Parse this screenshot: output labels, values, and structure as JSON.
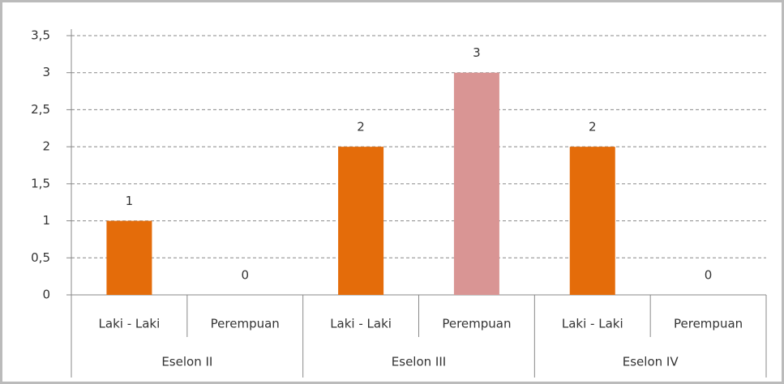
{
  "chart_data": {
    "type": "bar",
    "categories": [
      "Laki - Laki",
      "Perempuan",
      "Laki - Laki",
      "Perempuan",
      "Laki - Laki",
      "Perempuan"
    ],
    "groups": [
      "Eselon II",
      "Eselon III",
      "Eselon IV"
    ],
    "values": [
      1,
      0,
      2,
      3,
      2,
      0
    ],
    "colors": [
      "#e46c0a",
      "#d99594",
      "#e46c0a",
      "#d99594",
      "#e46c0a",
      "#d99594"
    ],
    "ylim": [
      0,
      3.5
    ],
    "yticks": [
      0,
      {
        "value": 0.5,
        "label": "0,5"
      },
      1,
      {
        "value": 1.5,
        "label": "1,5"
      },
      2,
      {
        "value": 2.5,
        "label": "2,5"
      },
      3,
      {
        "value": 3.5,
        "label": "3,5"
      }
    ],
    "grid": true
  }
}
